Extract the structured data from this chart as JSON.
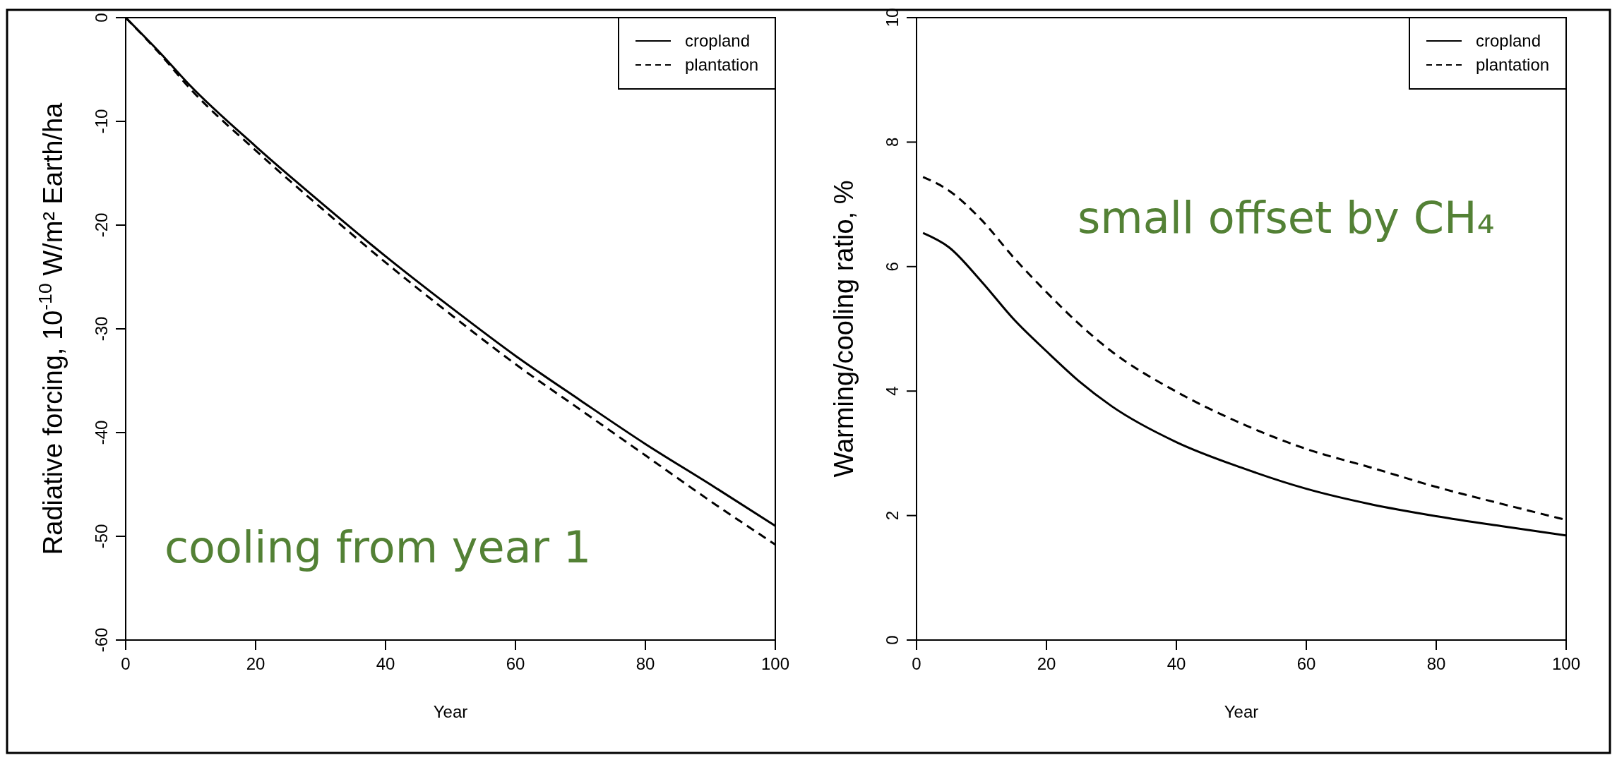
{
  "chart_data": [
    {
      "type": "line",
      "ylabel": "Radiative forcing, 10$^{-10}$ W/m² Earth/ha",
      "xlabel": "Year",
      "x": [
        0,
        5,
        10,
        20,
        30,
        40,
        50,
        60,
        70,
        80,
        90,
        100
      ],
      "xlim": [
        0,
        100
      ],
      "xticks": [
        0,
        20,
        40,
        60,
        80,
        100
      ],
      "ylim": [
        -60,
        0
      ],
      "yticks": [
        -60,
        -50,
        -40,
        -30,
        -20,
        -10,
        0
      ],
      "legend": "top right",
      "annotations": [
        "cooling from year 1"
      ],
      "series": [
        {
          "name": "cropland",
          "color": "#000000",
          "line_style": "solid",
          "values": [
            0,
            -3.2,
            -6.6,
            -12.4,
            -17.8,
            -23.0,
            -27.9,
            -32.6,
            -36.9,
            -41.1,
            -45.0,
            -49.0
          ]
        },
        {
          "name": "plantation",
          "color": "#000000",
          "line_style": "dashed",
          "values": [
            0,
            -3.3,
            -6.9,
            -12.8,
            -18.3,
            -23.6,
            -28.6,
            -33.4,
            -37.8,
            -42.2,
            -46.6,
            -50.8
          ]
        }
      ]
    },
    {
      "type": "line",
      "ylabel": "Warming/cooling ratio, %",
      "xlabel": "Year",
      "x": [
        1,
        5,
        10,
        15,
        20,
        25,
        30,
        40,
        50,
        60,
        70,
        80,
        90,
        100
      ],
      "xlim": [
        0,
        100
      ],
      "xticks": [
        0,
        20,
        40,
        60,
        80,
        100
      ],
      "ylim": [
        0,
        10
      ],
      "yticks": [
        0,
        2,
        4,
        6,
        8,
        10
      ],
      "legend": "top right",
      "annotations": [
        "small offset by CH₄"
      ],
      "series": [
        {
          "name": "cropland",
          "color": "#000000",
          "line_style": "solid",
          "values": [
            6.54,
            6.31,
            5.76,
            5.15,
            4.64,
            4.16,
            3.76,
            3.18,
            2.77,
            2.43,
            2.18,
            1.99,
            1.83,
            1.68
          ]
        },
        {
          "name": "plantation",
          "color": "#000000",
          "line_style": "dashed",
          "values": [
            7.44,
            7.22,
            6.75,
            6.14,
            5.59,
            5.08,
            4.64,
            3.99,
            3.48,
            3.07,
            2.77,
            2.46,
            2.19,
            1.93
          ]
        }
      ]
    }
  ]
}
